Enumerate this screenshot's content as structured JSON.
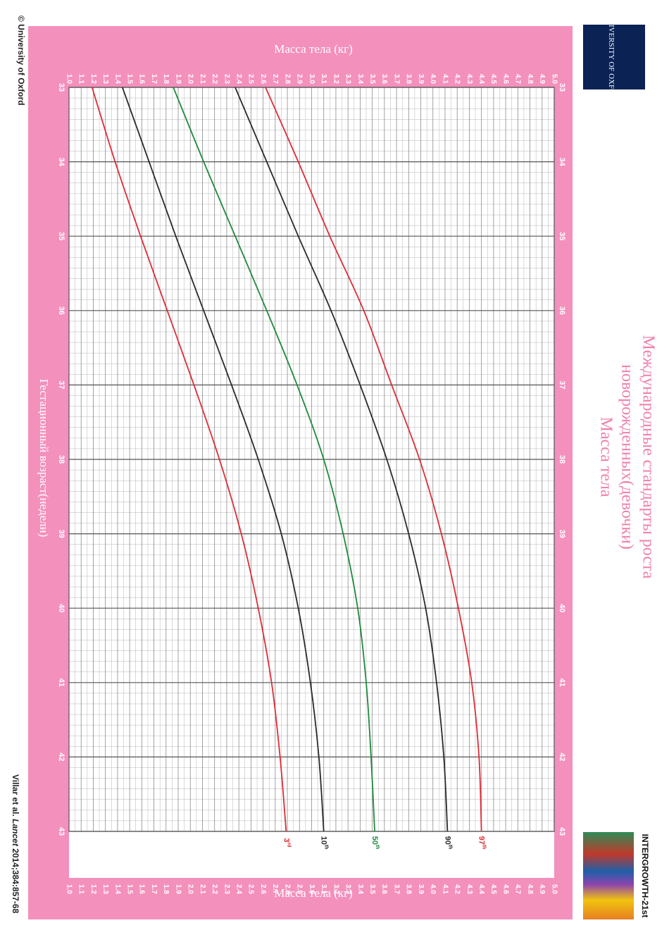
{
  "title": {
    "line1": "Международные стандарты роста",
    "line2": "новорожденных(девочки)",
    "line3": "Масса тела"
  },
  "logos": {
    "oxford_text": "UNIVERSITY OF OXFORD",
    "intergrowth": "INTERGROWTH-21st"
  },
  "footer": {
    "copyright": "© University of Oxford",
    "citation_authors": "Villar et al.",
    "citation_journal": "Lancet",
    "citation_ref": "2014;384:857-68"
  },
  "colors": {
    "frame": "#f490bc",
    "grid": "#9a9a9a",
    "axis_text": "#ffffff",
    "title": "#ef80ad",
    "p3": "#e02b35",
    "p10": "#2a2a2a",
    "p50": "#1e8a3c",
    "p90": "#2a2a2a",
    "p97": "#e02b35"
  },
  "chart_data": {
    "type": "line",
    "xlabel": "Гестационный возраст(недели)",
    "ylabel": "Масса тела (кг)",
    "xlim": [
      33,
      43
    ],
    "ylim": [
      1.0,
      5.0
    ],
    "x_ticks": [
      "33",
      "34",
      "35",
      "36",
      "37",
      "38",
      "39",
      "40",
      "41",
      "42",
      "43"
    ],
    "y_ticks": [
      "1.0",
      "1.1",
      "1.2",
      "1.3",
      "1.4",
      "1.5",
      "1.6",
      "1.7",
      "1.8",
      "1.9",
      "2.0",
      "2.1",
      "2.2",
      "2.3",
      "2.4",
      "2.5",
      "2.6",
      "2.7",
      "2.8",
      "2.9",
      "3.0",
      "3.1",
      "3.2",
      "3.3",
      "3.4",
      "3.5",
      "3.6",
      "3.7",
      "3.8",
      "3.9",
      "4.0",
      "4.1",
      "4.2",
      "4.3",
      "4.4",
      "4.5",
      "4.6",
      "4.7",
      "4.8",
      "4.9",
      "5.0"
    ],
    "grid": true,
    "x": [
      33,
      34,
      35,
      36,
      37,
      38,
      39,
      40,
      41,
      42,
      43
    ],
    "series": [
      {
        "name": "3rd",
        "label_main": "3",
        "label_sup": "rd",
        "color": "#e02b35",
        "values": [
          1.19,
          1.38,
          1.59,
          1.81,
          2.03,
          2.24,
          2.42,
          2.56,
          2.67,
          2.74,
          2.79
        ]
      },
      {
        "name": "10th",
        "label_main": "10",
        "label_sup": "th",
        "color": "#2a2a2a",
        "values": [
          1.44,
          1.66,
          1.88,
          2.11,
          2.34,
          2.56,
          2.75,
          2.89,
          2.99,
          3.06,
          3.1
        ]
      },
      {
        "name": "50th",
        "label_main": "50",
        "label_sup": "th",
        "color": "#1e8a3c",
        "values": [
          1.86,
          2.11,
          2.37,
          2.63,
          2.88,
          3.1,
          3.26,
          3.38,
          3.45,
          3.49,
          3.52
        ]
      },
      {
        "name": "90th",
        "label_main": "90",
        "label_sup": "th",
        "color": "#2a2a2a",
        "values": [
          2.37,
          2.63,
          2.89,
          3.16,
          3.4,
          3.62,
          3.8,
          3.94,
          4.03,
          4.09,
          4.12
        ]
      },
      {
        "name": "97th",
        "label_main": "97",
        "label_sup": "th",
        "color": "#e02b35",
        "values": [
          2.62,
          2.89,
          3.15,
          3.43,
          3.66,
          3.89,
          4.07,
          4.21,
          4.32,
          4.38,
          4.4
        ]
      }
    ]
  }
}
